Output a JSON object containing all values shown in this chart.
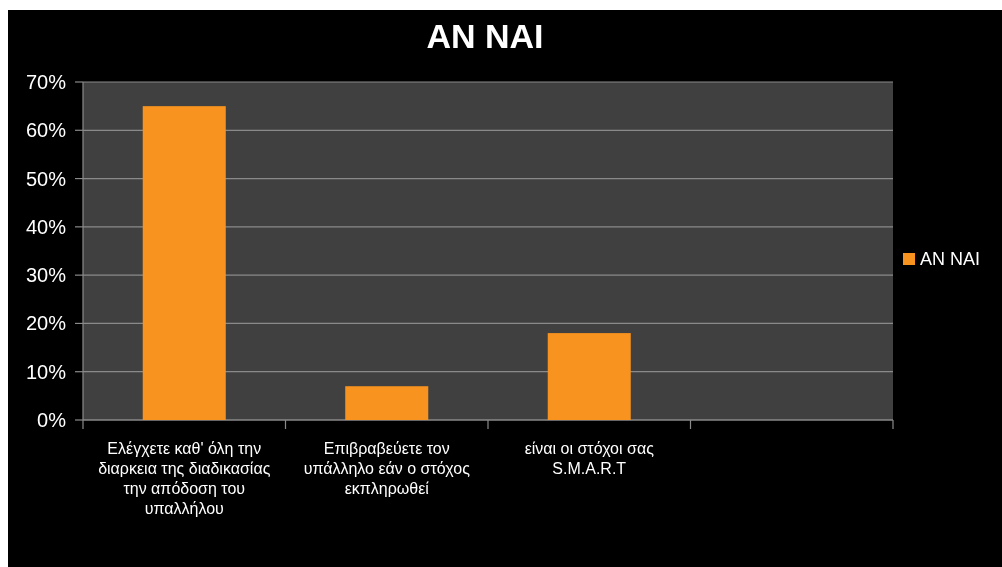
{
  "chart_data": {
    "type": "bar",
    "title": "ΑΝ ΝΑΙ",
    "categories": [
      "Ελέγχετε καθ' όλη την διαρκεια της διαδικασίας την απόδοση του υπαλλήλου",
      "Επιβραβεύετε τον υπάλληλο εάν ο στόχος εκπληρωθεί",
      "είναι οι στόχοι σας S.M.A.R.T",
      null
    ],
    "series": [
      {
        "name": "ΑΝ ΝΑΙ",
        "color": "#f7931e",
        "values": [
          65,
          7,
          18,
          null
        ]
      }
    ],
    "ylim": [
      0,
      70
    ],
    "yticks": [
      {
        "value": 0,
        "label": "0%"
      },
      {
        "value": 10,
        "label": "10%"
      },
      {
        "value": 20,
        "label": "20%"
      },
      {
        "value": 30,
        "label": "30%"
      },
      {
        "value": 40,
        "label": "40%"
      },
      {
        "value": 50,
        "label": "50%"
      },
      {
        "value": 60,
        "label": "60%"
      },
      {
        "value": 70,
        "label": "70%"
      }
    ],
    "grid": "y",
    "legend": "right"
  }
}
